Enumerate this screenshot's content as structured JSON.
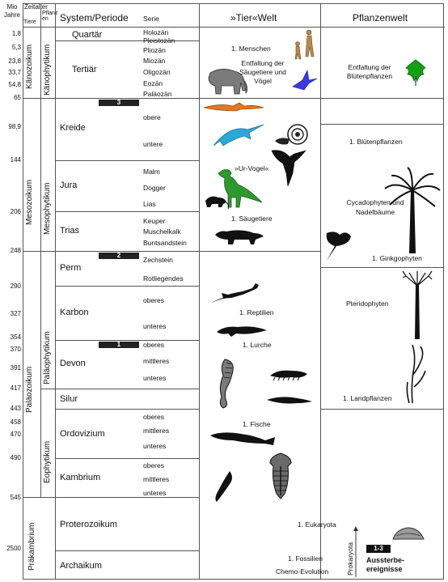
{
  "headers": {
    "mio_jahre": "Mio Jahre",
    "zeitalter": "Zeitalter",
    "tiere": "Tiere",
    "pflanzen": "Pflanzen",
    "system": "System/Periode",
    "serie": "Serie",
    "tierwelt": "»Tier«Welt",
    "pflanzenwelt": "Pflanzenwelt"
  },
  "time_ticks": [
    "1,8",
    "5,3",
    "23,8",
    "33,7",
    "54,8",
    "65",
    "98,9",
    "144",
    "206",
    "248",
    "290",
    "327",
    "354",
    "370",
    "391",
    "417",
    "443",
    "458",
    "470",
    "490",
    "545",
    "2500"
  ],
  "eras_animals": [
    "Känozoikum",
    "Mesozoikum",
    "Paläozoikum",
    "Präkambrium"
  ],
  "eras_plants": [
    "Känophytikum",
    "Mesophytikum",
    "Paläophytikum",
    "Eophytikum"
  ],
  "systems": [
    "Quartär",
    "Tertiär",
    "Kreide",
    "Jura",
    "Trias",
    "Perm",
    "Karbon",
    "Devon",
    "Silur",
    "Ordovizium",
    "Kambrium",
    "Proterozoikum",
    "Archaikum"
  ],
  "series": [
    "Holozän",
    "Pleistozän",
    "Pliozän",
    "Miozän",
    "Oligozän",
    "Eozän",
    "Paläozän",
    "obere",
    "untere",
    "Malm",
    "Dogger",
    "Lias",
    "Keuper",
    "Muschelkalk",
    "Buntsandstein",
    "Zechstein",
    "Rotliegendes",
    "oberes",
    "unteres",
    "oberes",
    "mittleres",
    "unteres",
    "oberes",
    "mittleres",
    "unteres",
    "oberes",
    "mittleres",
    "unteres"
  ],
  "extinctions": [
    "3",
    "2",
    "1"
  ],
  "animal_notes": {
    "menschen": "1. Menschen",
    "saeuger": "Entfaltung der Säugetiere und Vögel",
    "urvogel": "»Ur-Vogel«",
    "saeugetiere": "1. Säugetiere",
    "reptilien": "1. Reptilien",
    "lurche": "1. Lurche",
    "fische": "1. Fische",
    "eukaryota": "1. Eukaryota",
    "fossilien": "1. Fossilien",
    "chemo": "Chemo-Evolution",
    "prokaryota": "Prokaryota"
  },
  "plant_notes": {
    "bluetenpflanzen_entf": "Entfaltung der Blütenpflanzen",
    "bluetenpflanzen": "1. Blütenpflanzen",
    "cycado": "Cycadophyten und Nadelbäume",
    "ginkgo": "1. Ginkgophyten",
    "pterido": "Pteridophyten",
    "land": "1. Landpflanzen"
  },
  "legend": {
    "badge": "1-3",
    "text": "Aussterbe-ereignisse"
  },
  "colors": {
    "mammal_grey": "#7a7a7a",
    "bird_blue": "#3a3adf",
    "leaf_green": "#14a014",
    "dino_green": "#2e9a2e",
    "ichthyo_cyan": "#2aa9d9",
    "ptero_orange": "#e07820"
  }
}
